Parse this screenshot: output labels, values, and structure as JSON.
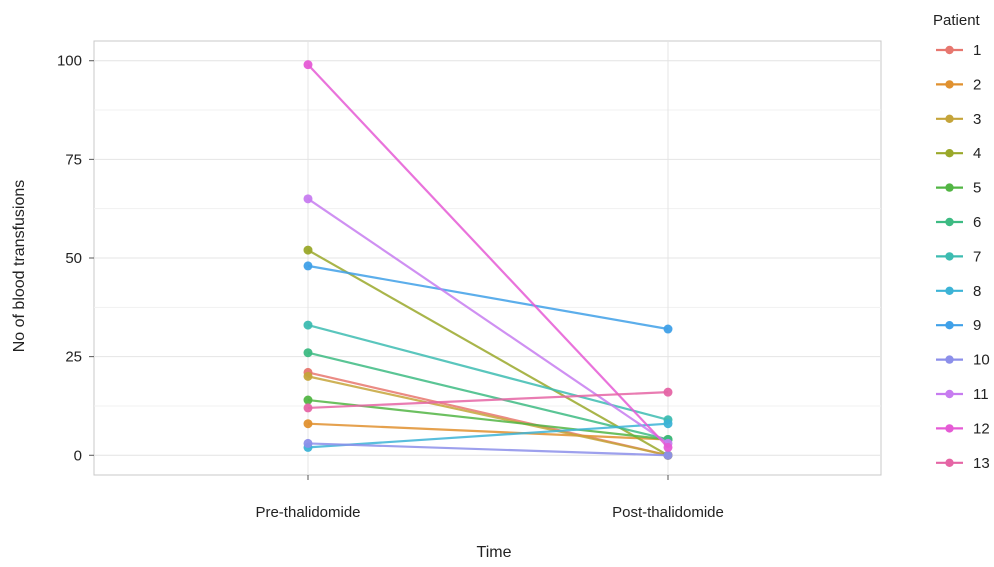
{
  "chart_data": {
    "type": "line",
    "title": "",
    "xlabel": "Time",
    "ylabel": "No of blood transfusions",
    "categories": [
      "Pre-thalidomide",
      "Post-thalidomide"
    ],
    "ylim": [
      -5,
      105
    ],
    "yticks": [
      0,
      25,
      50,
      75,
      100
    ],
    "grid": true,
    "legend": {
      "title": "Patient",
      "position": "right"
    },
    "series": [
      {
        "name": "1",
        "color": "#E7776F",
        "values": [
          21,
          0
        ]
      },
      {
        "name": "2",
        "color": "#E0912F",
        "values": [
          8,
          4
        ]
      },
      {
        "name": "3",
        "color": "#C5A43A",
        "values": [
          20,
          0
        ]
      },
      {
        "name": "4",
        "color": "#9AA82A",
        "values": [
          52,
          0
        ]
      },
      {
        "name": "5",
        "color": "#52B544",
        "values": [
          14,
          4
        ]
      },
      {
        "name": "6",
        "color": "#3DBB83",
        "values": [
          26,
          4
        ]
      },
      {
        "name": "7",
        "color": "#3DBCB1",
        "values": [
          33,
          9
        ]
      },
      {
        "name": "8",
        "color": "#3CB3D6",
        "values": [
          2,
          8
        ]
      },
      {
        "name": "9",
        "color": "#3FA0E8",
        "values": [
          48,
          32
        ]
      },
      {
        "name": "10",
        "color": "#8C8FEA",
        "values": [
          3,
          0
        ]
      },
      {
        "name": "11",
        "color": "#C77CF0",
        "values": [
          65,
          3
        ]
      },
      {
        "name": "12",
        "color": "#E55BD5",
        "values": [
          99,
          2
        ]
      },
      {
        "name": "13",
        "color": "#E565A5",
        "values": [
          12,
          16
        ]
      }
    ]
  }
}
